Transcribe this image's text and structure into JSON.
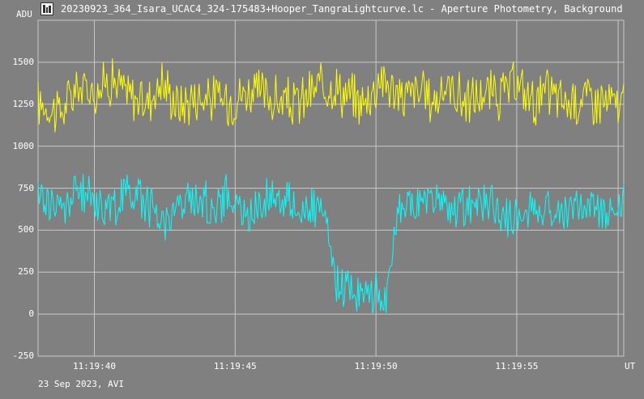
{
  "window": {
    "title": "20230923_364_Isara_UCAC4_324-175483+Hooper_TangraLightcurve.lc - Aperture Photometry, Background",
    "icon": "lightcurve-app-icon"
  },
  "axes": {
    "y_unit": "ADU",
    "x_unit": "UT",
    "footer": "23 Sep 2023, AVI"
  },
  "colors": {
    "background": "#808080",
    "grid": "#c8c8c8",
    "series_target": "#ffff00",
    "series_comparison": "#00ffff"
  },
  "chart_data": {
    "type": "line",
    "title": "",
    "xlabel": "UT",
    "ylabel": "ADU",
    "ylim": [
      -250,
      1750
    ],
    "xlim": [
      "11:19:38.2",
      "11:19:59.0"
    ],
    "y_ticks": [
      "-250",
      "0",
      "250",
      "500",
      "750",
      "1000",
      "1250",
      "1500"
    ],
    "x_ticks": [
      "11:19:40",
      "11:19:45",
      "11:19:50",
      "11:19:55"
    ],
    "grid": true,
    "series": [
      {
        "color": "#ffff00",
        "x_seconds_after_11_19_38": [
          0.2,
          0.8,
          1.4,
          2.0,
          2.6,
          3.2,
          3.8,
          4.4,
          5.0,
          5.6,
          6.2,
          6.8,
          7.4,
          8.0,
          8.6,
          9.2,
          9.8,
          10.4,
          11.0,
          11.6,
          12.2,
          12.8,
          13.4,
          14.0,
          14.6,
          15.2,
          15.8,
          16.4,
          17.0,
          17.6,
          18.2,
          18.8,
          19.4,
          20.0,
          20.6
        ],
        "values": [
          1250,
          1200,
          1350,
          1330,
          1400,
          1310,
          1260,
          1380,
          1240,
          1300,
          1290,
          1270,
          1330,
          1310,
          1260,
          1250,
          1330,
          1380,
          1300,
          1260,
          1420,
          1290,
          1330,
          1270,
          1360,
          1260,
          1310,
          1300,
          1360,
          1270,
          1320,
          1250,
          1300,
          1270,
          1240
        ]
      },
      {
        "color": "#00ffff",
        "x_seconds_after_11_19_38": [
          0.2,
          0.8,
          1.4,
          2.0,
          2.6,
          3.2,
          3.8,
          4.4,
          5.0,
          5.6,
          6.2,
          6.8,
          7.4,
          8.0,
          8.6,
          9.2,
          9.8,
          10.2,
          10.6,
          11.0,
          11.4,
          11.8,
          12.0,
          12.4,
          12.8,
          13.4,
          14.0,
          14.6,
          15.2,
          15.8,
          16.4,
          17.0,
          17.6,
          18.2,
          18.8,
          19.4,
          20.0,
          20.6
        ],
        "values": [
          700,
          620,
          730,
          690,
          620,
          750,
          680,
          560,
          640,
          700,
          630,
          720,
          560,
          690,
          710,
          630,
          620,
          560,
          150,
          170,
          130,
          120,
          140,
          100,
          620,
          650,
          700,
          610,
          640,
          680,
          600,
          560,
          650,
          620,
          600,
          670,
          620,
          660
        ]
      }
    ]
  }
}
